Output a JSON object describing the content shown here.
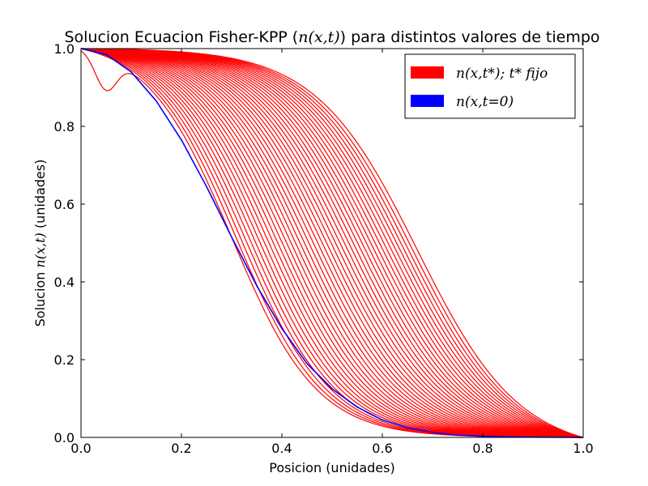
{
  "chart_data": {
    "type": "line",
    "title_prefix": "Solucion Ecuacion Fisher-KPP (",
    "title_math": "n(x,t)",
    "title_suffix": ") para distintos valores de tiempo",
    "xlabel": "Posicion (unidades)",
    "ylabel_prefix": "Solucion ",
    "ylabel_math": "n(x,t)",
    "ylabel_suffix": " (unidades)",
    "xlim": [
      0.0,
      1.0
    ],
    "ylim": [
      0.0,
      1.0
    ],
    "xticks": [
      "0.0",
      "0.2",
      "0.4",
      "0.6",
      "0.8",
      "1.0"
    ],
    "yticks": [
      "0.0",
      "0.2",
      "0.4",
      "0.6",
      "0.8",
      "1.0"
    ],
    "grid": false,
    "legend_position": "top-right",
    "colors": {
      "fixed_time": "#ff0000",
      "initial": "#0000ff"
    },
    "initial_condition": {
      "name": "n(x,t=0)",
      "x": [
        0.0,
        0.05,
        0.1,
        0.15,
        0.2,
        0.25,
        0.3,
        0.35,
        0.4,
        0.45,
        0.5,
        0.55,
        0.6,
        0.65,
        0.7,
        0.75,
        0.8,
        0.85,
        0.9,
        0.95,
        1.0
      ],
      "y": [
        1.0,
        0.985,
        0.94,
        0.865,
        0.765,
        0.645,
        0.515,
        0.39,
        0.28,
        0.19,
        0.125,
        0.078,
        0.045,
        0.025,
        0.013,
        0.006,
        0.003,
        0.0015,
        0.0007,
        0.0003,
        0.0
      ]
    },
    "fixed_time_series": {
      "name": "n(x,t*); t* fijo",
      "x_center_at_y_half": [
        0.3,
        0.309,
        0.318,
        0.327,
        0.336,
        0.345,
        0.354,
        0.363,
        0.372,
        0.381,
        0.39,
        0.399,
        0.408,
        0.417,
        0.426,
        0.435,
        0.444,
        0.453,
        0.462,
        0.471,
        0.48,
        0.489,
        0.498,
        0.507,
        0.516,
        0.525,
        0.534,
        0.543,
        0.552,
        0.561,
        0.57,
        0.579,
        0.588,
        0.597,
        0.606,
        0.615,
        0.624,
        0.633,
        0.642,
        0.651,
        0.66,
        0.67
      ]
    },
    "legend": [
      {
        "label": "n(x,t*); t* fijo",
        "color": "#ff0000"
      },
      {
        "label": "n(x,t=0)",
        "color": "#0000ff"
      }
    ]
  }
}
